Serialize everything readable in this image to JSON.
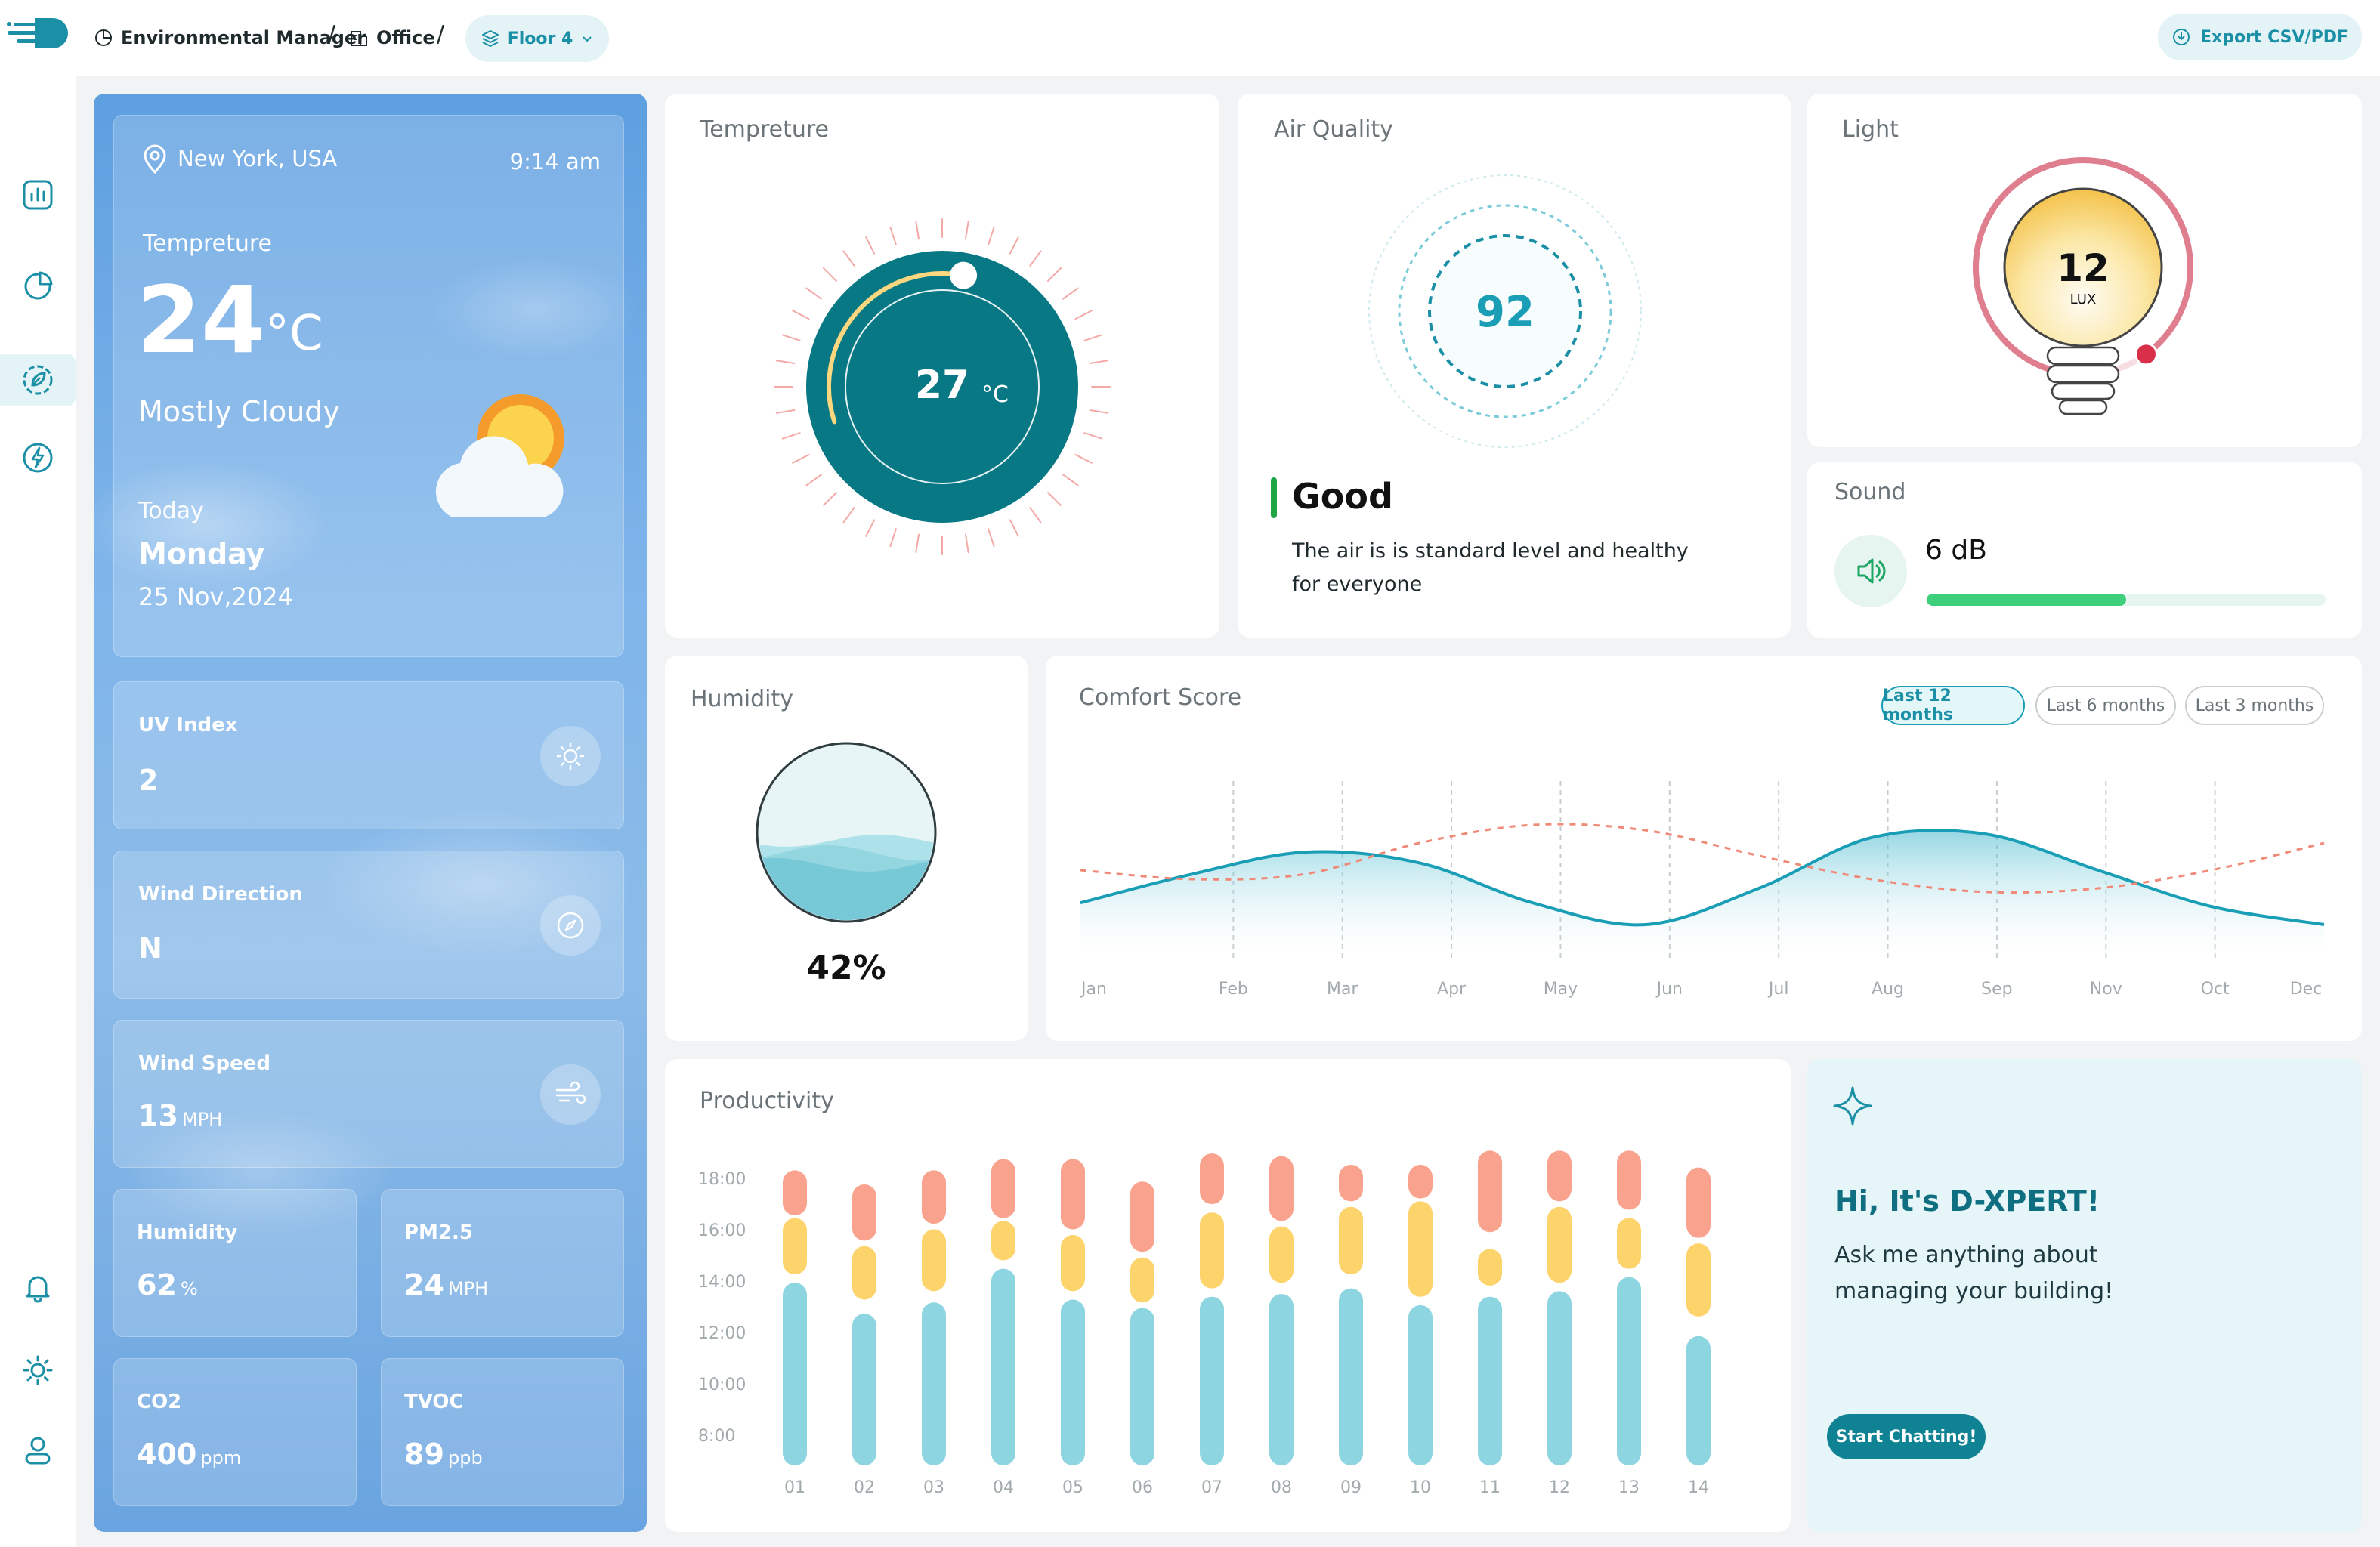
{
  "breadcrumb": {
    "items": [
      "Environmental Manager",
      "Office"
    ],
    "current": "Floor 4"
  },
  "export_label": "Export CSV/PDF",
  "sidebar": {
    "icons": [
      "bar-chart-icon",
      "pie-chart-icon",
      "eco-gear-icon",
      "energy-icon"
    ],
    "bottom_icons": [
      "bell-icon",
      "sun-settings-icon",
      "user-icon"
    ],
    "active_index": 2
  },
  "weather": {
    "location": "New York, USA",
    "time": "9:14 am",
    "temp_label": "Tempreture",
    "temp_value": "24",
    "temp_unit": "°C",
    "condition": "Mostly Cloudy",
    "day_label": "Today",
    "day": "Monday",
    "date": "25 Nov,2024",
    "uv": {
      "label": "UV Index",
      "value": "2"
    },
    "wind_dir": {
      "label": "Wind Direction",
      "value": "N"
    },
    "wind_speed": {
      "label": "Wind Speed",
      "value": "13",
      "unit": "MPH"
    },
    "humidity": {
      "label": "Humidity",
      "value": "62",
      "unit": "%"
    },
    "pm25": {
      "label": "PM2.5",
      "value": "24",
      "unit": "MPH"
    },
    "co2": {
      "label": "CO2",
      "value": "400",
      "unit": "ppm"
    },
    "tvoc": {
      "label": "TVOC",
      "value": "89",
      "unit": "ppb"
    }
  },
  "temperature": {
    "title": "Tempreture",
    "value": "27",
    "unit": "°C",
    "arc_fraction": 0.33
  },
  "air": {
    "title": "Air Quality",
    "value": "92",
    "status": "Good",
    "description": "The air is is standard level and healthy for everyone"
  },
  "light": {
    "title": "Light",
    "value": "12",
    "unit": "LUX",
    "arc_fraction": 0.85
  },
  "sound": {
    "title": "Sound",
    "value": "6 dB",
    "level_fraction": 0.5
  },
  "humidity_card": {
    "title": "Humidity",
    "value": "42%",
    "fraction": 0.42
  },
  "comfort": {
    "title": "Comfort Score",
    "filters": [
      "Last 12 months",
      "Last 6 months",
      "Last 3 months"
    ],
    "active_filter": 0
  },
  "chart_data": {
    "type": "area",
    "categories": [
      "Jan",
      "Feb",
      "Mar",
      "Apr",
      "May",
      "Jun",
      "Jul",
      "Aug",
      "Sep",
      "Nov",
      "Oct",
      "Dec"
    ],
    "series": [
      {
        "values": [
          22,
          38,
          50,
          44,
          22,
          10,
          30,
          58,
          60,
          40,
          20,
          10
        ],
        "style": "area",
        "color": "#1a9eb6"
      },
      {
        "values": [
          40,
          35,
          38,
          55,
          65,
          62,
          48,
          35,
          28,
          30,
          40,
          55
        ],
        "style": "dashed",
        "color": "#f08a78"
      }
    ],
    "ylim": [
      0,
      100
    ],
    "grid": "vertical-dashed"
  },
  "productivity": {
    "title": "Productivity",
    "y_labels": [
      "18:00",
      "16:00",
      "14:00",
      "12:00",
      "10:00",
      "8:00"
    ],
    "x_labels": [
      "01",
      "02",
      "03",
      "04",
      "05",
      "06",
      "07",
      "08",
      "09",
      "10",
      "11",
      "12",
      "13",
      "14"
    ],
    "chart_data": {
      "type": "bar",
      "categories": [
        "01",
        "02",
        "03",
        "04",
        "05",
        "06",
        "07",
        "08",
        "09",
        "10",
        "11",
        "12",
        "13",
        "14"
      ],
      "ylim": [
        8,
        18
      ],
      "series": [
        {
          "color": "#8dd5e0",
          "start": [
            8,
            8,
            8,
            8,
            8,
            8,
            8,
            8,
            8,
            8,
            8,
            8,
            8,
            8
          ],
          "end": [
            14.5,
            13.4,
            13.8,
            15.0,
            13.9,
            13.6,
            14.0,
            14.1,
            14.3,
            13.7,
            14.0,
            14.2,
            14.7,
            12.6
          ]
        },
        {
          "color": "#fdd36b",
          "start": [
            14.8,
            13.9,
            14.2,
            15.3,
            14.2,
            13.8,
            14.3,
            14.5,
            14.8,
            14.0,
            14.4,
            14.5,
            15.0,
            13.3
          ],
          "end": [
            16.8,
            15.8,
            16.4,
            16.7,
            16.2,
            15.4,
            17.0,
            16.5,
            17.2,
            17.4,
            15.7,
            17.2,
            16.8,
            15.9
          ]
        },
        {
          "color": "#f9a28e",
          "start": [
            16.9,
            16.0,
            16.6,
            16.8,
            16.4,
            15.6,
            17.3,
            16.7,
            17.4,
            17.5,
            16.3,
            17.4,
            17.1,
            16.1
          ],
          "end": [
            18.5,
            18.0,
            18.5,
            18.9,
            18.9,
            18.1,
            19.1,
            19.0,
            18.7,
            18.7,
            19.2,
            19.2,
            19.2,
            18.6
          ]
        }
      ]
    }
  },
  "assistant": {
    "title": "Hi, It's D-XPERT!",
    "body": "Ask me anything about managing your building!",
    "cta": "Start Chatting!"
  }
}
